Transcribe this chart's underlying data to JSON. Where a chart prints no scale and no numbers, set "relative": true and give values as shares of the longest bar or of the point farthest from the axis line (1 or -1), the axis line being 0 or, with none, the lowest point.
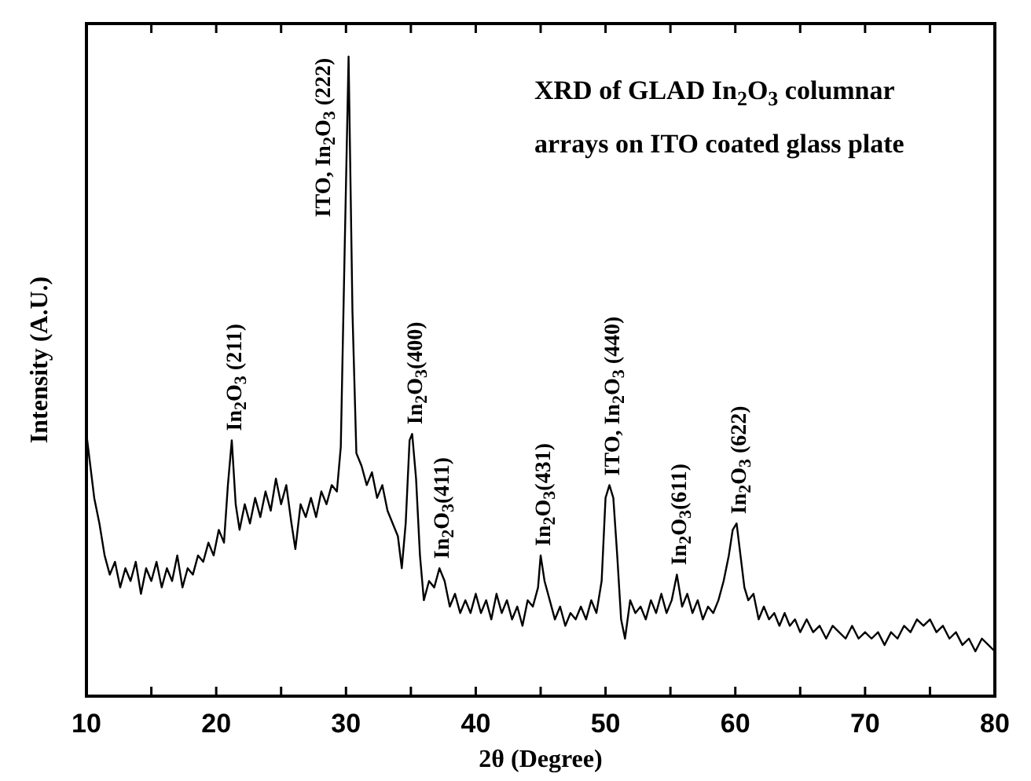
{
  "chart_data": {
    "type": "line",
    "relative": true,
    "title": "XRD of GLAD In$_{2}$O$_{3}$ columnar",
    "subtitle": "arrays on ITO coated glass plate",
    "xlabel": "2θ (Degree)",
    "ylabel": "Intensity (A.U.)",
    "xlim": [
      10,
      80
    ],
    "xticks": [
      10,
      {
        "value": 15,
        "label": null
      },
      20,
      {
        "value": 25,
        "label": null
      },
      30,
      {
        "value": 35,
        "label": null
      },
      40,
      {
        "value": 45,
        "label": null
      },
      50,
      {
        "value": 55,
        "label": null
      },
      60,
      {
        "value": 65,
        "label": null
      },
      70,
      {
        "value": 75,
        "label": null
      },
      80
    ],
    "legend": false,
    "grid": false,
    "marker": "none",
    "line_style": "solid",
    "series": [
      {
        "color": "#000000",
        "x": [
          10,
          10.3,
          10.6,
          11,
          11.4,
          11.8,
          12.2,
          12.6,
          13,
          13.4,
          13.8,
          14.2,
          14.6,
          15,
          15.4,
          15.8,
          16.2,
          16.6,
          17,
          17.4,
          17.8,
          18.2,
          18.6,
          19,
          19.4,
          19.8,
          20.2,
          20.6,
          20.9,
          21.2,
          21.5,
          21.8,
          22.2,
          22.6,
          23,
          23.4,
          23.8,
          24.2,
          24.6,
          25,
          25.4,
          25.8,
          26.1,
          26.5,
          26.9,
          27.3,
          27.7,
          28.1,
          28.5,
          28.9,
          29.3,
          29.6,
          29.9,
          30.2,
          30.5,
          30.8,
          31.2,
          31.6,
          32,
          32.4,
          32.8,
          33.2,
          33.6,
          34,
          34.3,
          34.6,
          34.9,
          35.1,
          35.4,
          35.7,
          36,
          36.4,
          36.8,
          37.2,
          37.6,
          38,
          38.4,
          38.8,
          39.2,
          39.6,
          40,
          40.4,
          40.8,
          41.2,
          41.6,
          42,
          42.4,
          42.8,
          43.2,
          43.6,
          44,
          44.4,
          44.8,
          45,
          45.3,
          45.7,
          46.1,
          46.5,
          46.9,
          47.3,
          47.7,
          48.1,
          48.5,
          48.9,
          49.3,
          49.7,
          50,
          50.3,
          50.6,
          50.9,
          51.2,
          51.5,
          51.9,
          52.3,
          52.7,
          53.1,
          53.5,
          53.9,
          54.3,
          54.7,
          55.1,
          55.5,
          55.9,
          56.3,
          56.7,
          57.1,
          57.5,
          57.9,
          58.3,
          58.7,
          59.1,
          59.5,
          59.8,
          60.1,
          60.4,
          60.7,
          61,
          61.4,
          61.8,
          62.2,
          62.6,
          63,
          63.4,
          63.8,
          64.2,
          64.6,
          65,
          65.5,
          66,
          66.5,
          67,
          67.5,
          68,
          68.5,
          69,
          69.5,
          70,
          70.5,
          71,
          71.5,
          72,
          72.5,
          73,
          73.5,
          74,
          74.5,
          75,
          75.5,
          76,
          76.5,
          77,
          77.5,
          78,
          78.5,
          79,
          79.5,
          80
        ],
        "values": [
          0.41,
          0.36,
          0.31,
          0.27,
          0.22,
          0.19,
          0.21,
          0.17,
          0.2,
          0.18,
          0.21,
          0.16,
          0.2,
          0.18,
          0.21,
          0.17,
          0.2,
          0.18,
          0.22,
          0.17,
          0.2,
          0.19,
          0.22,
          0.21,
          0.24,
          0.22,
          0.26,
          0.24,
          0.33,
          0.4,
          0.3,
          0.26,
          0.3,
          0.27,
          0.31,
          0.28,
          0.32,
          0.29,
          0.34,
          0.3,
          0.33,
          0.27,
          0.23,
          0.3,
          0.28,
          0.31,
          0.28,
          0.32,
          0.3,
          0.33,
          0.32,
          0.39,
          0.7,
          1,
          0.6,
          0.38,
          0.36,
          0.33,
          0.35,
          0.31,
          0.33,
          0.29,
          0.27,
          0.25,
          0.2,
          0.27,
          0.4,
          0.41,
          0.34,
          0.22,
          0.15,
          0.18,
          0.17,
          0.2,
          0.18,
          0.14,
          0.16,
          0.13,
          0.15,
          0.13,
          0.16,
          0.13,
          0.15,
          0.12,
          0.16,
          0.13,
          0.15,
          0.12,
          0.14,
          0.11,
          0.15,
          0.14,
          0.17,
          0.22,
          0.18,
          0.15,
          0.12,
          0.14,
          0.11,
          0.13,
          0.12,
          0.14,
          0.12,
          0.15,
          0.13,
          0.18,
          0.31,
          0.33,
          0.31,
          0.22,
          0.12,
          0.09,
          0.15,
          0.13,
          0.14,
          0.12,
          0.15,
          0.13,
          0.16,
          0.13,
          0.15,
          0.19,
          0.14,
          0.16,
          0.13,
          0.15,
          0.12,
          0.14,
          0.13,
          0.15,
          0.18,
          0.22,
          0.26,
          0.27,
          0.22,
          0.17,
          0.15,
          0.16,
          0.12,
          0.14,
          0.12,
          0.13,
          0.11,
          0.13,
          0.11,
          0.12,
          0.1,
          0.12,
          0.1,
          0.11,
          0.09,
          0.11,
          0.1,
          0.09,
          0.11,
          0.09,
          0.1,
          0.09,
          0.1,
          0.08,
          0.1,
          0.09,
          0.11,
          0.1,
          0.12,
          0.11,
          0.12,
          0.1,
          0.11,
          0.09,
          0.1,
          0.08,
          0.09,
          0.07,
          0.09,
          0.08,
          0.07
        ]
      }
    ],
    "annotations": [
      {
        "text": "In$_{2}$O$_{3}$ (211)",
        "x": 21.2,
        "y": 0.4
      },
      {
        "text": "ITO, In$_{2}$O$_{3}$ (222)",
        "x": 30.2,
        "y": 1
      },
      {
        "text": "In$_{2}$O$_{3}$(400)",
        "x": 35.1,
        "y": 0.41
      },
      {
        "text": "In$_{2}$O$_{3}$(411)",
        "x": 37.2,
        "y": 0.2
      },
      {
        "text": "In$_{2}$O$_{3}$(431)",
        "x": 45,
        "y": 0.22
      },
      {
        "text": "ITO, In$_{2}$O$_{3}$ (440)",
        "x": 50.3,
        "y": 0.33
      },
      {
        "text": "In$_{2}$O$_{3}$(611)",
        "x": 55.5,
        "y": 0.19
      },
      {
        "text": "In$_{2}$O$_{3}$ (622)",
        "x": 60.1,
        "y": 0.27
      }
    ]
  }
}
